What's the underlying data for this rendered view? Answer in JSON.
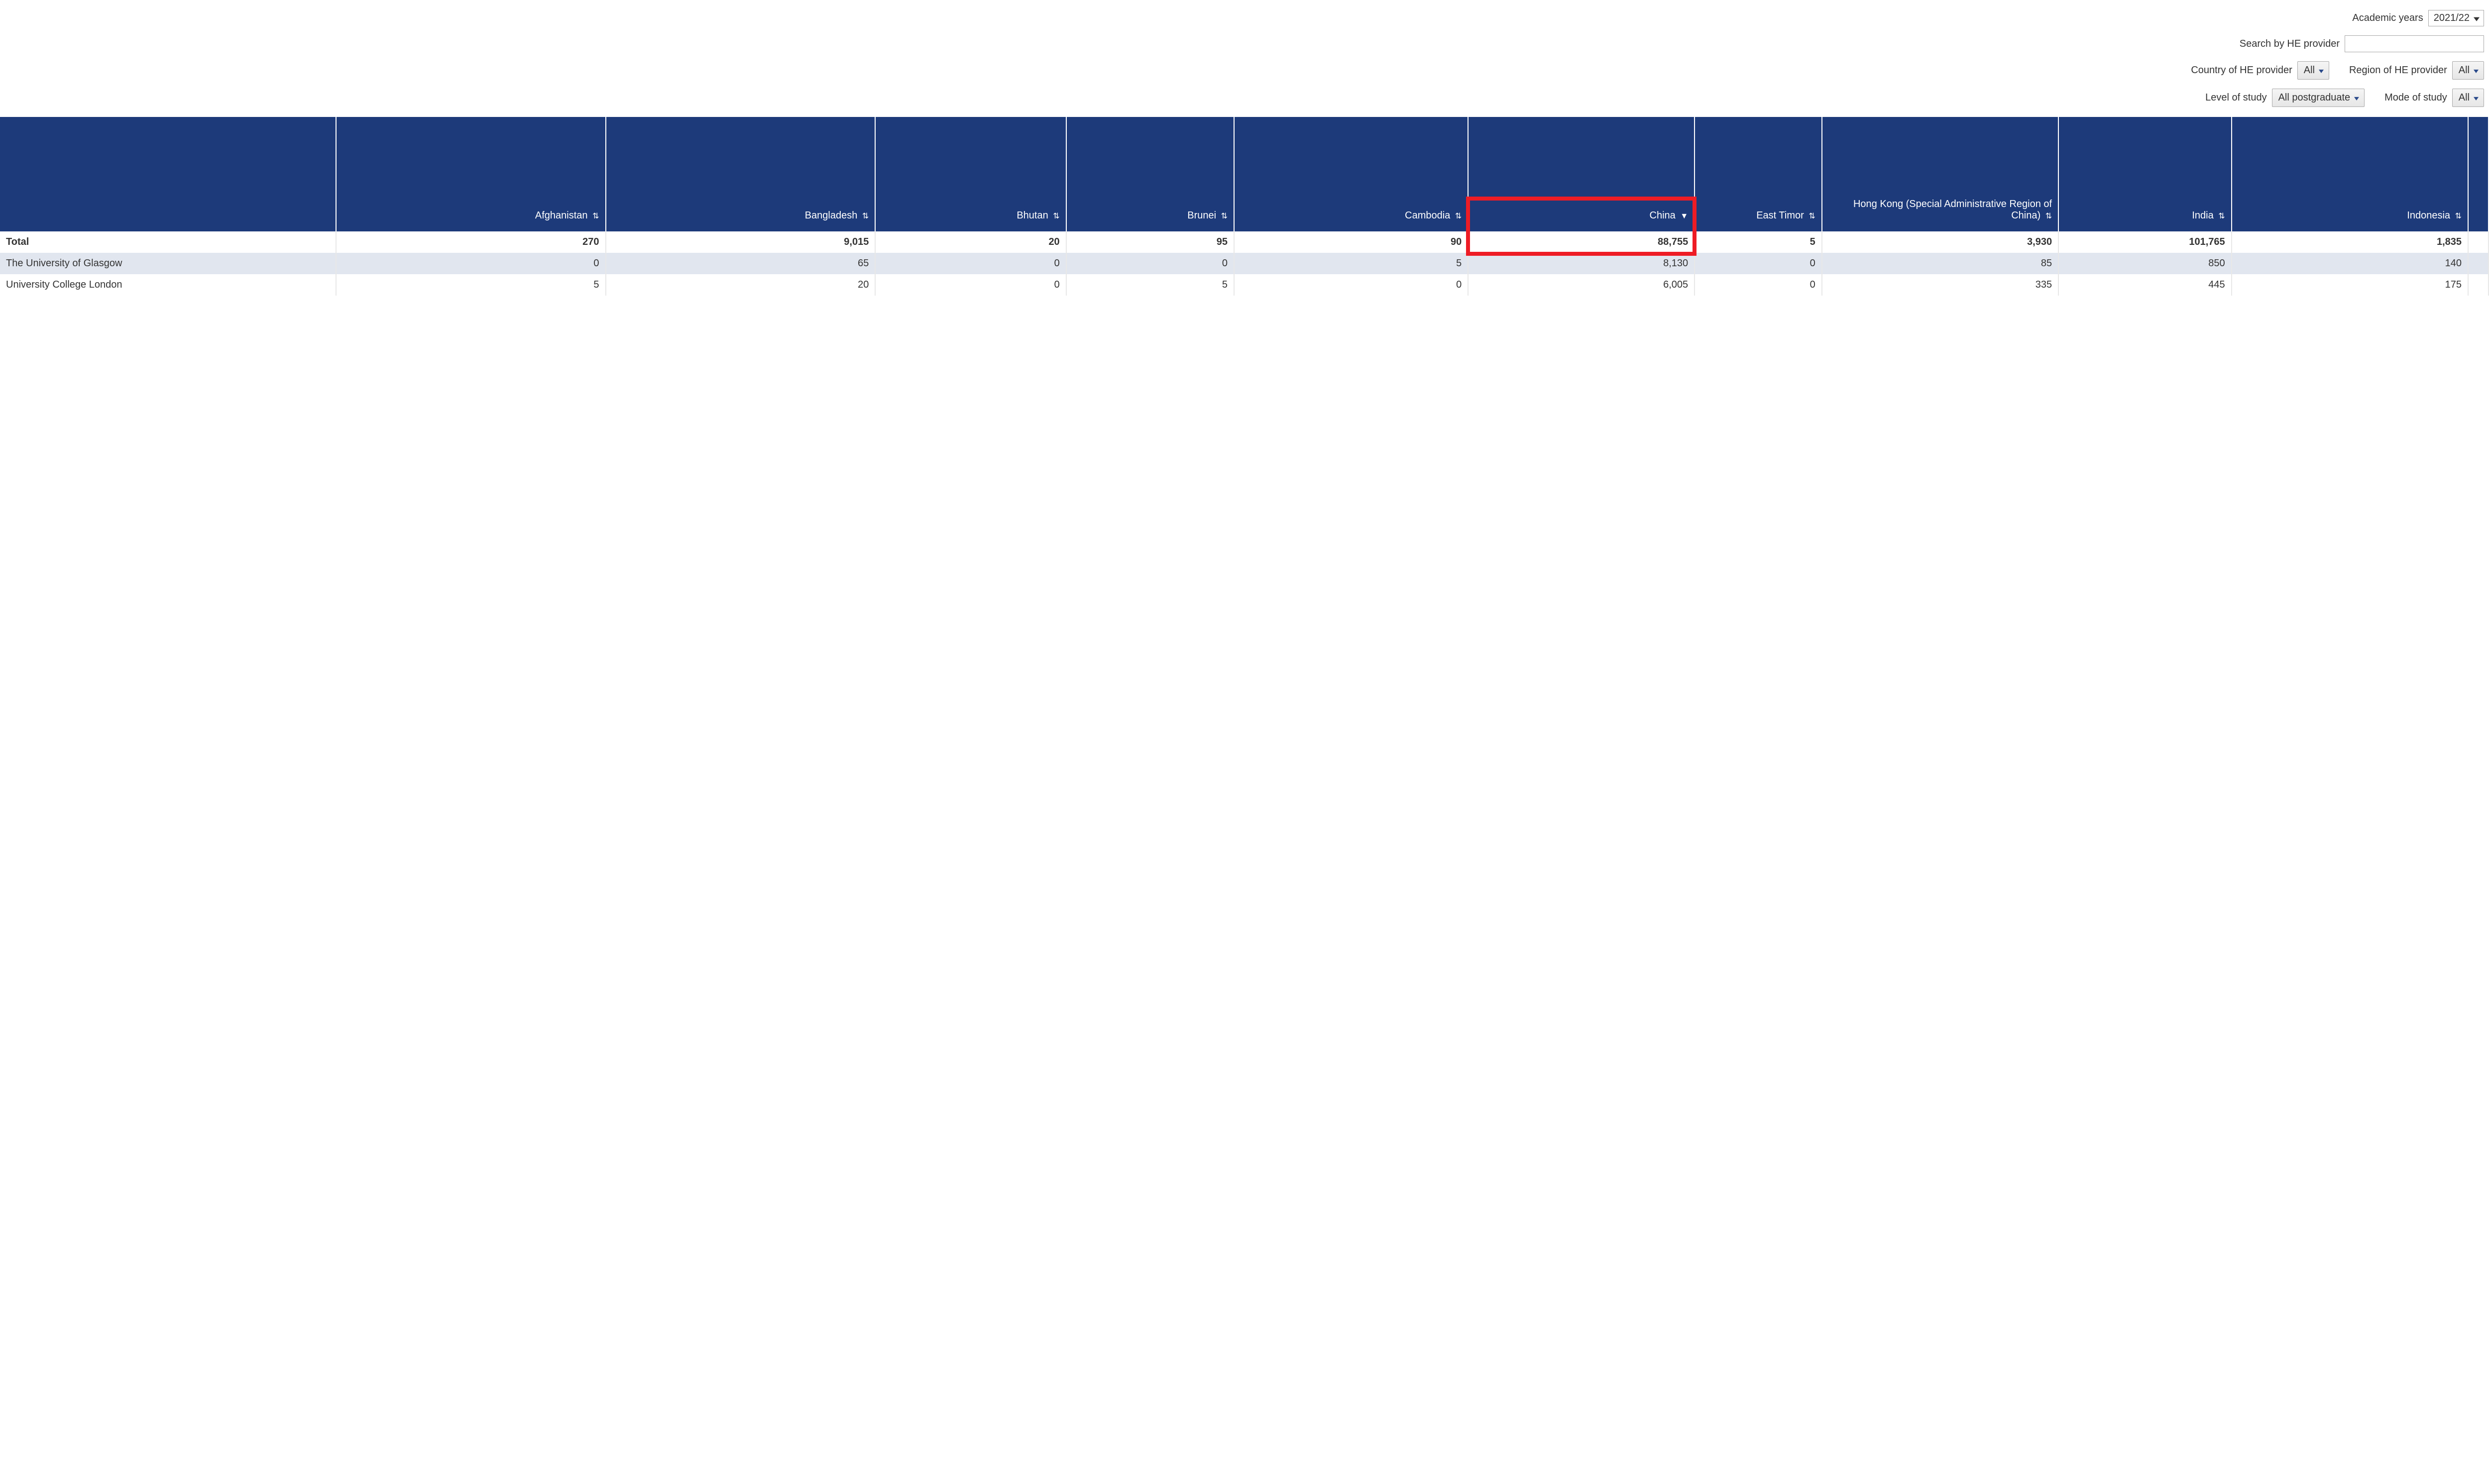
{
  "filters": {
    "academic_years_label": "Academic years",
    "academic_years_value": "2021/22",
    "search_label": "Search by HE provider",
    "search_value": "",
    "country_label": "Country of HE provider",
    "country_value": "All",
    "region_label": "Region of HE provider",
    "region_value": "All",
    "level_label": "Level of study",
    "level_value": "All postgraduate",
    "mode_label": "Mode of study",
    "mode_value": "All"
  },
  "table": {
    "colors": {
      "header_bg": "#1d3a7a",
      "header_fg": "#ffffff",
      "row_alt_bg": "#e1e6ef",
      "highlight_border": "#ee1c25"
    },
    "columns": [
      {
        "key": "provider",
        "label": "",
        "sortable": false
      },
      {
        "key": "afghanistan",
        "label": "Afghanistan",
        "sort": "none"
      },
      {
        "key": "bangladesh",
        "label": "Bangladesh",
        "sort": "none"
      },
      {
        "key": "bhutan",
        "label": "Bhutan",
        "sort": "none"
      },
      {
        "key": "brunei",
        "label": "Brunei",
        "sort": "none"
      },
      {
        "key": "cambodia",
        "label": "Cambodia",
        "sort": "none"
      },
      {
        "key": "china",
        "label": "China",
        "sort": "desc"
      },
      {
        "key": "east_timor",
        "label": "East Timor",
        "sort": "none"
      },
      {
        "key": "hong_kong",
        "label": "Hong Kong (Special Administrative Region of China)",
        "sort": "none"
      },
      {
        "key": "india",
        "label": "India",
        "sort": "none"
      },
      {
        "key": "indonesia",
        "label": "Indonesia",
        "sort": "none"
      }
    ],
    "total_row": {
      "provider": "Total",
      "afghanistan": "270",
      "bangladesh": "9,015",
      "bhutan": "20",
      "brunei": "95",
      "cambodia": "90",
      "china": "88,755",
      "east_timor": "5",
      "hong_kong": "3,930",
      "india": "101,765",
      "indonesia": "1,835"
    },
    "rows": [
      {
        "provider": "The University of Glasgow",
        "afghanistan": "0",
        "bangladesh": "65",
        "bhutan": "0",
        "brunei": "0",
        "cambodia": "5",
        "china": "8,130",
        "east_timor": "0",
        "hong_kong": "85",
        "india": "850",
        "indonesia": "140"
      },
      {
        "provider": "University College London",
        "afghanistan": "5",
        "bangladesh": "20",
        "bhutan": "0",
        "brunei": "5",
        "cambodia": "0",
        "china": "6,005",
        "east_timor": "0",
        "hong_kong": "335",
        "india": "445",
        "indonesia": "175"
      }
    ],
    "highlight": {
      "col": "china",
      "includes_header": true,
      "includes_total": true
    }
  }
}
